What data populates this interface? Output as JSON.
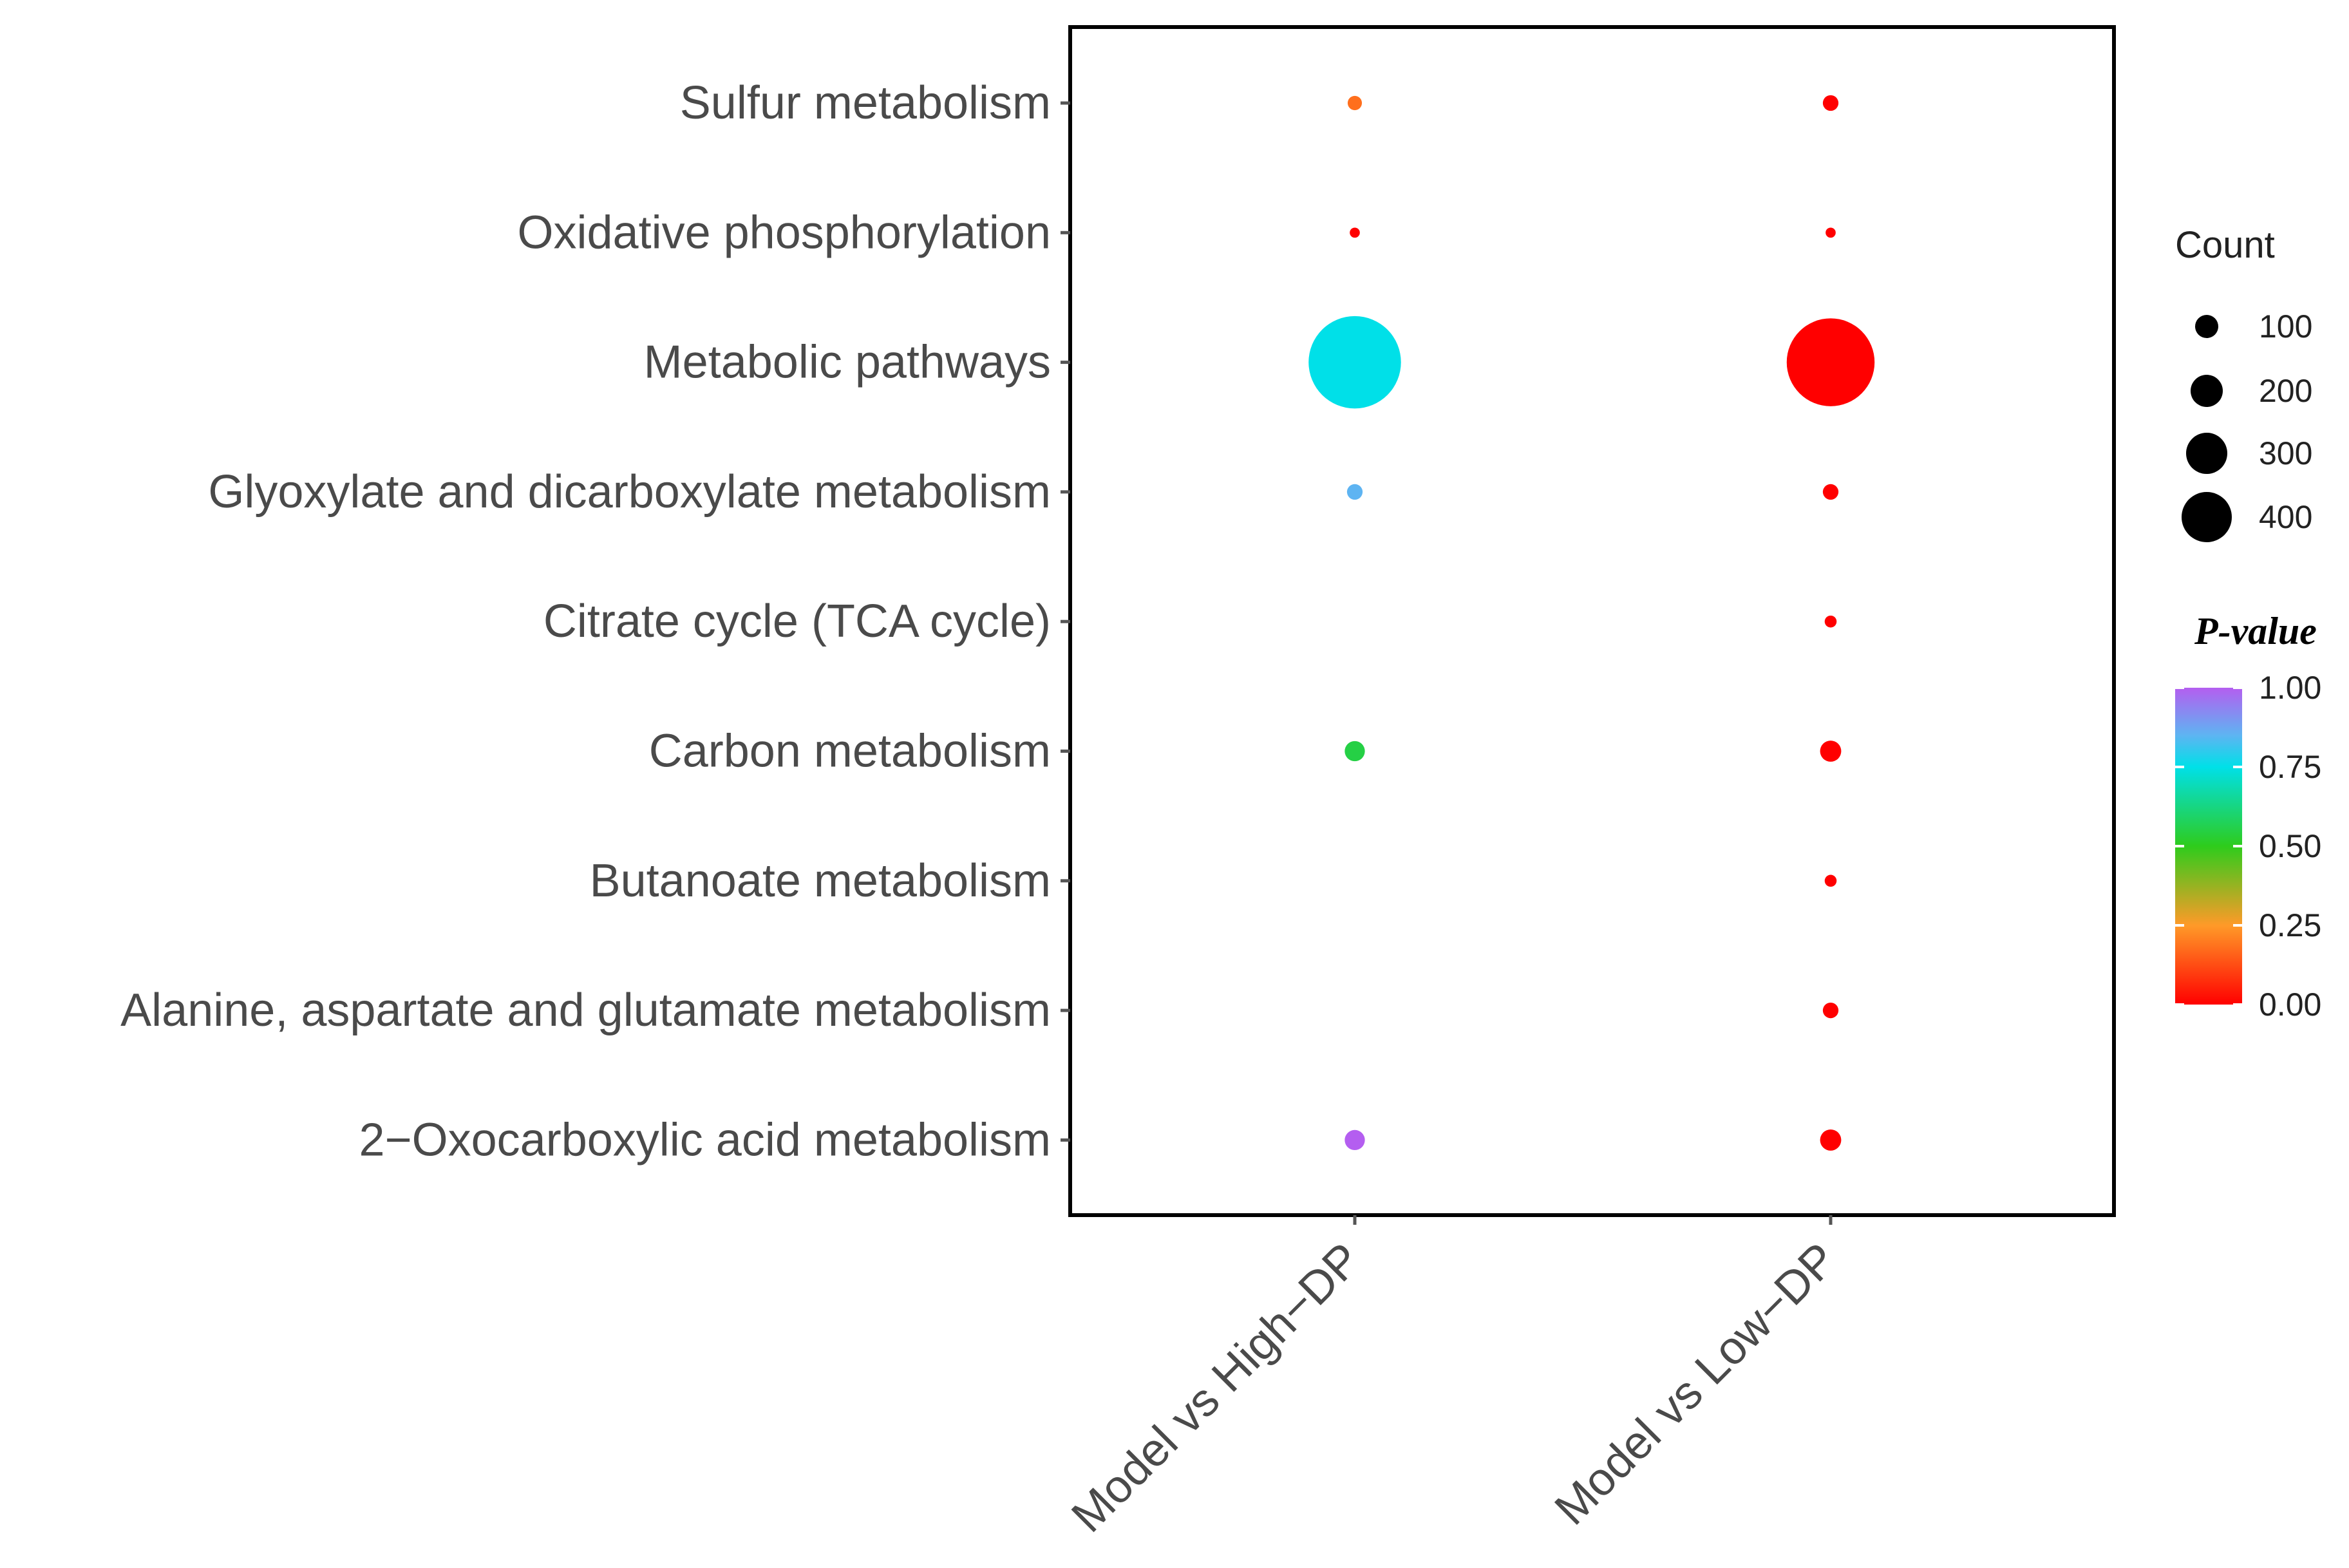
{
  "chart_data": {
    "type": "bubble",
    "title": "",
    "categories": [
      "Sulfur metabolism",
      "Oxidative phosphorylation",
      "Metabolic pathways",
      "Glyoxylate and dicarboxylate metabolism",
      "Citrate cycle (TCA cycle)",
      "Carbon metabolism",
      "Butanoate metabolism",
      "Alanine, aspartate and glutamate metabolism",
      "2−Oxocarboxylic acid metabolism"
    ],
    "groups": [
      "Model vs High−DP",
      "Model vs Low−DP"
    ],
    "points": [
      {
        "group": "Model vs High−DP",
        "category": "Sulfur metabolism",
        "count": 10,
        "pvalue": 0.18
      },
      {
        "group": "Model vs High−DP",
        "category": "Oxidative phosphorylation",
        "count": 5,
        "pvalue": 0.0
      },
      {
        "group": "Model vs High−DP",
        "category": "Metabolic pathways",
        "count": 420,
        "pvalue": 0.75
      },
      {
        "group": "Model vs High−DP",
        "category": "Glyoxylate and dicarboxylate metabolism",
        "count": 12,
        "pvalue": 0.85
      },
      {
        "group": "Model vs High−DP",
        "category": "Carbon metabolism",
        "count": 20,
        "pvalue": 0.55
      },
      {
        "group": "Model vs High−DP",
        "category": "2−Oxocarboxylic acid metabolism",
        "count": 20,
        "pvalue": 1.0
      },
      {
        "group": "Model vs Low−DP",
        "category": "Sulfur metabolism",
        "count": 12,
        "pvalue": 0.0
      },
      {
        "group": "Model vs Low−DP",
        "category": "Oxidative phosphorylation",
        "count": 5,
        "pvalue": 0.0
      },
      {
        "group": "Model vs Low−DP",
        "category": "Metabolic pathways",
        "count": 380,
        "pvalue": 0.0
      },
      {
        "group": "Model vs Low−DP",
        "category": "Glyoxylate and dicarboxylate metabolism",
        "count": 12,
        "pvalue": 0.0
      },
      {
        "group": "Model vs Low−DP",
        "category": "Citrate cycle (TCA cycle)",
        "count": 7,
        "pvalue": 0.0
      },
      {
        "group": "Model vs Low−DP",
        "category": "Carbon metabolism",
        "count": 22,
        "pvalue": 0.0
      },
      {
        "group": "Model vs Low−DP",
        "category": "Butanoate metabolism",
        "count": 7,
        "pvalue": 0.0
      },
      {
        "group": "Model vs Low−DP",
        "category": "Alanine, aspartate and glutamate metabolism",
        "count": 12,
        "pvalue": 0.0
      },
      {
        "group": "Model vs Low−DP",
        "category": "2−Oxocarboxylic acid metabolism",
        "count": 22,
        "pvalue": 0.0
      }
    ],
    "size_legend": {
      "title": "Count",
      "values": [
        100,
        200,
        300,
        400
      ]
    },
    "color_legend": {
      "title": "P-value",
      "range": [
        0,
        1
      ],
      "ticks": [
        {
          "value": 1.0,
          "label": "1.00"
        },
        {
          "value": 0.75,
          "label": "0.75"
        },
        {
          "value": 0.5,
          "label": "0.50"
        },
        {
          "value": 0.25,
          "label": "0.25"
        },
        {
          "value": 0.0,
          "label": "0.00"
        }
      ],
      "stops": [
        {
          "value": 0.0,
          "color": "#ff0000"
        },
        {
          "value": 0.25,
          "color": "#ff9a28"
        },
        {
          "value": 0.5,
          "color": "#2ecc1c"
        },
        {
          "value": 0.75,
          "color": "#00e0e8"
        },
        {
          "value": 0.85,
          "color": "#5eb4f2"
        },
        {
          "value": 1.0,
          "color": "#b45ef0"
        }
      ]
    },
    "legend_position": "right",
    "grid": false
  }
}
